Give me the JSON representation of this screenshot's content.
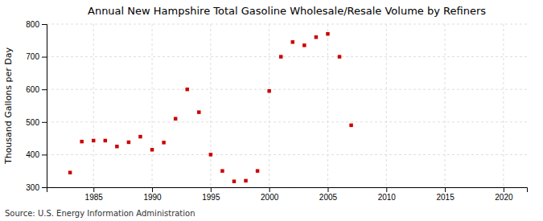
{
  "chart_data": {
    "type": "scatter",
    "title": "Annual New Hampshire Total Gasoline Wholesale/Resale Volume by Refiners",
    "ylabel": "Thousand Gallons per Day",
    "annotations": [
      "Source: U.S. Energy Information Administration"
    ],
    "color": "#cc0000",
    "marker": "square",
    "grid": true,
    "xlim": [
      1981,
      2022
    ],
    "ylim": [
      300,
      800
    ],
    "xticks": [
      1985,
      1990,
      1995,
      2000,
      2005,
      2010,
      2015,
      2020
    ],
    "yticks": [
      300,
      400,
      500,
      600,
      700,
      800
    ],
    "x": [
      1983,
      1984,
      1985,
      1986,
      1987,
      1988,
      1989,
      1990,
      1991,
      1992,
      1993,
      1994,
      1995,
      1996,
      1997,
      1998,
      1999,
      2000,
      2001,
      2002,
      2003,
      2004,
      2005,
      2006,
      2007
    ],
    "values": [
      345,
      440,
      443,
      443,
      425,
      438,
      455,
      415,
      437,
      510,
      600,
      530,
      400,
      350,
      318,
      320,
      350,
      595,
      700,
      745,
      735,
      760,
      770,
      700,
      490
    ]
  }
}
